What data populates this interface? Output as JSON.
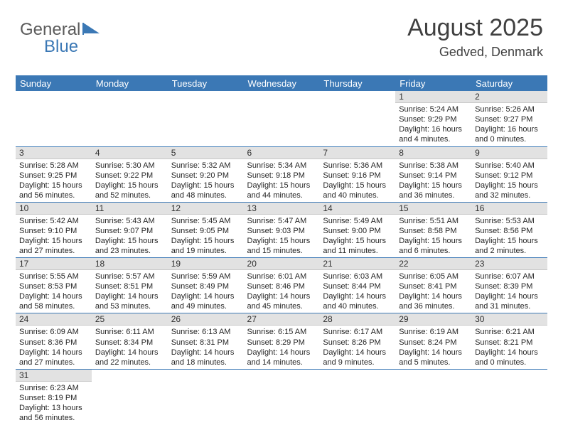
{
  "logo": {
    "word1": "General",
    "word2": "Blue"
  },
  "header": {
    "month": "August 2025",
    "location": "Gedved, Denmark"
  },
  "colors": {
    "header_bar": "#3b78b5",
    "day_stripe": "#e2e2e2",
    "row_divider": "#3b78b5",
    "text": "#262626",
    "logo_gray": "#5b5b5b",
    "logo_blue": "#3b78b5"
  },
  "weekdays": [
    "Sunday",
    "Monday",
    "Tuesday",
    "Wednesday",
    "Thursday",
    "Friday",
    "Saturday"
  ],
  "weeks": [
    [
      null,
      null,
      null,
      null,
      null,
      {
        "n": "1",
        "sunrise": "Sunrise: 5:24 AM",
        "sunset": "Sunset: 9:29 PM",
        "daylight": "Daylight: 16 hours and 4 minutes."
      },
      {
        "n": "2",
        "sunrise": "Sunrise: 5:26 AM",
        "sunset": "Sunset: 9:27 PM",
        "daylight": "Daylight: 16 hours and 0 minutes."
      }
    ],
    [
      {
        "n": "3",
        "sunrise": "Sunrise: 5:28 AM",
        "sunset": "Sunset: 9:25 PM",
        "daylight": "Daylight: 15 hours and 56 minutes."
      },
      {
        "n": "4",
        "sunrise": "Sunrise: 5:30 AM",
        "sunset": "Sunset: 9:22 PM",
        "daylight": "Daylight: 15 hours and 52 minutes."
      },
      {
        "n": "5",
        "sunrise": "Sunrise: 5:32 AM",
        "sunset": "Sunset: 9:20 PM",
        "daylight": "Daylight: 15 hours and 48 minutes."
      },
      {
        "n": "6",
        "sunrise": "Sunrise: 5:34 AM",
        "sunset": "Sunset: 9:18 PM",
        "daylight": "Daylight: 15 hours and 44 minutes."
      },
      {
        "n": "7",
        "sunrise": "Sunrise: 5:36 AM",
        "sunset": "Sunset: 9:16 PM",
        "daylight": "Daylight: 15 hours and 40 minutes."
      },
      {
        "n": "8",
        "sunrise": "Sunrise: 5:38 AM",
        "sunset": "Sunset: 9:14 PM",
        "daylight": "Daylight: 15 hours and 36 minutes."
      },
      {
        "n": "9",
        "sunrise": "Sunrise: 5:40 AM",
        "sunset": "Sunset: 9:12 PM",
        "daylight": "Daylight: 15 hours and 32 minutes."
      }
    ],
    [
      {
        "n": "10",
        "sunrise": "Sunrise: 5:42 AM",
        "sunset": "Sunset: 9:10 PM",
        "daylight": "Daylight: 15 hours and 27 minutes."
      },
      {
        "n": "11",
        "sunrise": "Sunrise: 5:43 AM",
        "sunset": "Sunset: 9:07 PM",
        "daylight": "Daylight: 15 hours and 23 minutes."
      },
      {
        "n": "12",
        "sunrise": "Sunrise: 5:45 AM",
        "sunset": "Sunset: 9:05 PM",
        "daylight": "Daylight: 15 hours and 19 minutes."
      },
      {
        "n": "13",
        "sunrise": "Sunrise: 5:47 AM",
        "sunset": "Sunset: 9:03 PM",
        "daylight": "Daylight: 15 hours and 15 minutes."
      },
      {
        "n": "14",
        "sunrise": "Sunrise: 5:49 AM",
        "sunset": "Sunset: 9:00 PM",
        "daylight": "Daylight: 15 hours and 11 minutes."
      },
      {
        "n": "15",
        "sunrise": "Sunrise: 5:51 AM",
        "sunset": "Sunset: 8:58 PM",
        "daylight": "Daylight: 15 hours and 6 minutes."
      },
      {
        "n": "16",
        "sunrise": "Sunrise: 5:53 AM",
        "sunset": "Sunset: 8:56 PM",
        "daylight": "Daylight: 15 hours and 2 minutes."
      }
    ],
    [
      {
        "n": "17",
        "sunrise": "Sunrise: 5:55 AM",
        "sunset": "Sunset: 8:53 PM",
        "daylight": "Daylight: 14 hours and 58 minutes."
      },
      {
        "n": "18",
        "sunrise": "Sunrise: 5:57 AM",
        "sunset": "Sunset: 8:51 PM",
        "daylight": "Daylight: 14 hours and 53 minutes."
      },
      {
        "n": "19",
        "sunrise": "Sunrise: 5:59 AM",
        "sunset": "Sunset: 8:49 PM",
        "daylight": "Daylight: 14 hours and 49 minutes."
      },
      {
        "n": "20",
        "sunrise": "Sunrise: 6:01 AM",
        "sunset": "Sunset: 8:46 PM",
        "daylight": "Daylight: 14 hours and 45 minutes."
      },
      {
        "n": "21",
        "sunrise": "Sunrise: 6:03 AM",
        "sunset": "Sunset: 8:44 PM",
        "daylight": "Daylight: 14 hours and 40 minutes."
      },
      {
        "n": "22",
        "sunrise": "Sunrise: 6:05 AM",
        "sunset": "Sunset: 8:41 PM",
        "daylight": "Daylight: 14 hours and 36 minutes."
      },
      {
        "n": "23",
        "sunrise": "Sunrise: 6:07 AM",
        "sunset": "Sunset: 8:39 PM",
        "daylight": "Daylight: 14 hours and 31 minutes."
      }
    ],
    [
      {
        "n": "24",
        "sunrise": "Sunrise: 6:09 AM",
        "sunset": "Sunset: 8:36 PM",
        "daylight": "Daylight: 14 hours and 27 minutes."
      },
      {
        "n": "25",
        "sunrise": "Sunrise: 6:11 AM",
        "sunset": "Sunset: 8:34 PM",
        "daylight": "Daylight: 14 hours and 22 minutes."
      },
      {
        "n": "26",
        "sunrise": "Sunrise: 6:13 AM",
        "sunset": "Sunset: 8:31 PM",
        "daylight": "Daylight: 14 hours and 18 minutes."
      },
      {
        "n": "27",
        "sunrise": "Sunrise: 6:15 AM",
        "sunset": "Sunset: 8:29 PM",
        "daylight": "Daylight: 14 hours and 14 minutes."
      },
      {
        "n": "28",
        "sunrise": "Sunrise: 6:17 AM",
        "sunset": "Sunset: 8:26 PM",
        "daylight": "Daylight: 14 hours and 9 minutes."
      },
      {
        "n": "29",
        "sunrise": "Sunrise: 6:19 AM",
        "sunset": "Sunset: 8:24 PM",
        "daylight": "Daylight: 14 hours and 5 minutes."
      },
      {
        "n": "30",
        "sunrise": "Sunrise: 6:21 AM",
        "sunset": "Sunset: 8:21 PM",
        "daylight": "Daylight: 14 hours and 0 minutes."
      }
    ],
    [
      {
        "n": "31",
        "sunrise": "Sunrise: 6:23 AM",
        "sunset": "Sunset: 8:19 PM",
        "daylight": "Daylight: 13 hours and 56 minutes."
      },
      null,
      null,
      null,
      null,
      null,
      null
    ]
  ]
}
